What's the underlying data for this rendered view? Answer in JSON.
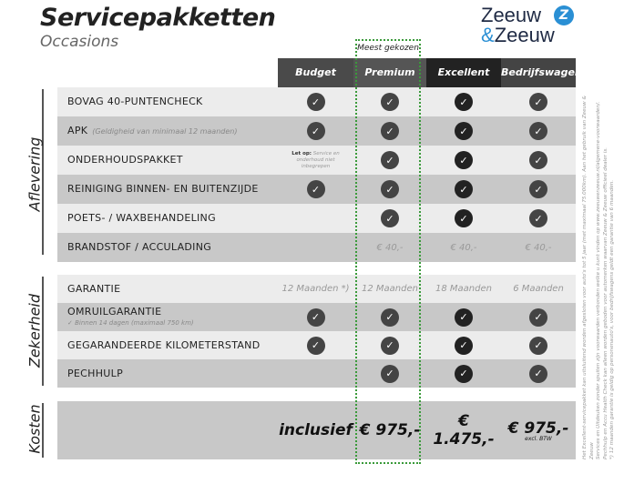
{
  "title": "Servicepakketten",
  "subtitle": "Occasions",
  "logo": {
    "line1": "Zeeuw",
    "line2": "Zeeuw",
    "amp": "&",
    "brand_color": "#2a8fd4"
  },
  "highlight_label": "Meest gekozen",
  "columns": [
    {
      "label": "Budget",
      "color": "#4a4a4a"
    },
    {
      "label": "Premium",
      "color": "#555555"
    },
    {
      "label": "Excellent",
      "color": "#222222"
    },
    {
      "label": "Bedrijfswagens",
      "color": "#444444"
    }
  ],
  "sections": [
    {
      "label": "Aflevering",
      "rows": [
        {
          "label": "BOVAG 40-PUNTENCHECK",
          "cells": [
            "check",
            "check",
            "check",
            "check"
          ]
        },
        {
          "label": "APK",
          "note": "(Geldigheid van minimaal 12 maanden)",
          "cells": [
            "check",
            "check",
            "check",
            "check"
          ]
        },
        {
          "label": "ONDERHOUDSPAKKET",
          "cells": [
            "note",
            "check",
            "check",
            "check"
          ]
        },
        {
          "label": "REINIGING BINNEN- EN BUITENZIJDE",
          "cells": [
            "check",
            "check",
            "check",
            "check"
          ]
        },
        {
          "label": "POETS- / WAXBEHANDELING",
          "cells": [
            "",
            "check",
            "check",
            "check"
          ]
        },
        {
          "label": "BRANDSTOF / ACCULADING",
          "cells": [
            "",
            "€ 40,-",
            "€ 40,-",
            "€ 40,-"
          ]
        }
      ]
    },
    {
      "label": "Zekerheid",
      "rows": [
        {
          "label": "GARANTIE",
          "cells": [
            "12 Maanden *)",
            "12 Maanden",
            "18 Maanden",
            "6 Maanden"
          ]
        },
        {
          "label": "OMRUILGARANTIE",
          "sub": "✓  Binnen 14 dagen (maximaal 750 km)",
          "cells": [
            "check",
            "check",
            "check",
            "check"
          ]
        },
        {
          "label": "GEGARANDEERDE KILOMETERSTAND",
          "cells": [
            "check",
            "check",
            "check",
            "check"
          ]
        },
        {
          "label": "PECHHULP",
          "cells": [
            "",
            "check",
            "check",
            "check"
          ]
        }
      ]
    }
  ],
  "budget_note": {
    "bold": "Let op:",
    "text": "Service en onderhoud niet inbegrepen"
  },
  "costs": {
    "label": "Kosten",
    "values": [
      "inclusief",
      "€ 975,-",
      "€ 1.475,-",
      "€ 975,-"
    ],
    "bedrijf_note": "excl. BTW"
  },
  "footnotes": [
    "Het Excellent-servicepakket kan uitsluitend worden afgesloten voor auto's tot 5 jaar (met maximaal 75.000km). Aan het gebruik van Zeeuw & Zeeuw",
    "Services en Uitdeuken zonder spuiten zijn voorwaarden verbonden welke u kunt vinden op www.zeeuwenzeeuw.nl/algemene-voorwaarden/.",
    "Pechhulp en Accu Health Check kan alleen worden geboden voor automerken waarvan Zeeuw & Zeeuw officieel dealer is.",
    "*) 12 maanden garantie is geldig op personenauto's, voor bedrijfswagens geldt een garantie van 6 maanden."
  ]
}
